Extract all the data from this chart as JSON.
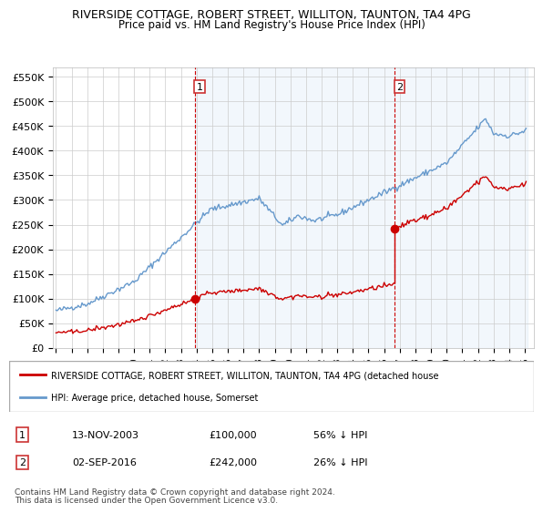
{
  "title": "RIVERSIDE COTTAGE, ROBERT STREET, WILLITON, TAUNTON, TA4 4PG",
  "subtitle": "Price paid vs. HM Land Registry's House Price Index (HPI)",
  "legend_line1": "RIVERSIDE COTTAGE, ROBERT STREET, WILLITON, TAUNTON, TA4 4PG (detached house",
  "legend_line2": "HPI: Average price, detached house, Somerset",
  "transaction1_date": "13-NOV-2003",
  "transaction1_price": 100000,
  "transaction1_label": "56% ↓ HPI",
  "transaction2_date": "02-SEP-2016",
  "transaction2_price": 242000,
  "transaction2_label": "26% ↓ HPI",
  "footer1": "Contains HM Land Registry data © Crown copyright and database right 2024.",
  "footer2": "This data is licensed under the Open Government Licence v3.0.",
  "ylim": [
    0,
    570000
  ],
  "yticks": [
    0,
    50000,
    100000,
    150000,
    200000,
    250000,
    300000,
    350000,
    400000,
    450000,
    500000,
    550000
  ],
  "hpi_color": "#a8c4e0",
  "hpi_line_color": "#6699cc",
  "red_color": "#cc0000",
  "bg_shaded": "#ddeeff",
  "grid_color": "#cccccc",
  "box_color": "#cc3333"
}
